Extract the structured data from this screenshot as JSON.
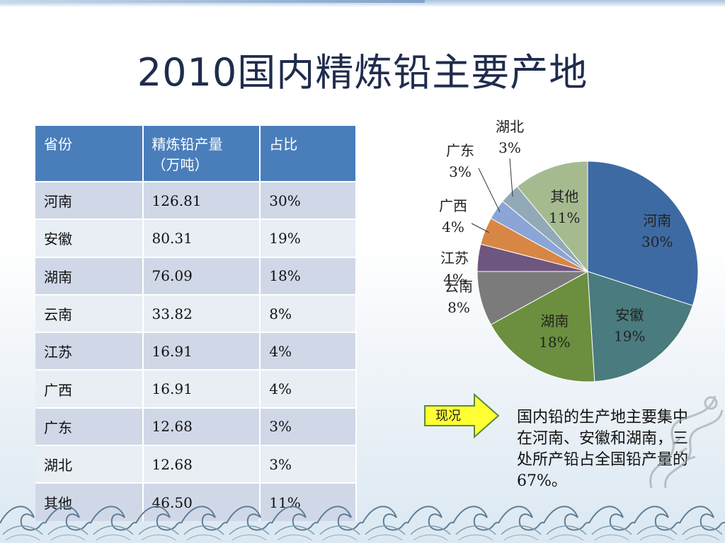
{
  "slide": {
    "title": "2010国内精炼铅主要产地"
  },
  "table": {
    "headers": [
      "省份",
      "精炼铅产量（万吨）",
      "占比"
    ],
    "rows": [
      [
        "河南",
        "126.81",
        "30%"
      ],
      [
        "安徽",
        "80.31",
        "19%"
      ],
      [
        "湖南",
        "76.09",
        "18%"
      ],
      [
        "云南",
        "33.82",
        "8%"
      ],
      [
        "江苏",
        "16.91",
        "4%"
      ],
      [
        "广西",
        "16.91",
        "4%"
      ],
      [
        "广东",
        "12.68",
        "3%"
      ],
      [
        "湖北",
        "12.68",
        "3%"
      ],
      [
        "其他",
        "46.50",
        "11%"
      ]
    ]
  },
  "chart_data": {
    "type": "pie",
    "categories": [
      "河南",
      "安徽",
      "湖南",
      "云南",
      "江苏",
      "广西",
      "广东",
      "湖北",
      "其他"
    ],
    "values": [
      30,
      19,
      18,
      8,
      4,
      4,
      3,
      3,
      11
    ],
    "labels": [
      "30%",
      "19%",
      "18%",
      "8%",
      "4%",
      "4%",
      "3%",
      "3%",
      "11%"
    ],
    "colors": [
      "#3e6aa3",
      "#4a7b7e",
      "#6b8f3e",
      "#7b7b7b",
      "#6e567e",
      "#d88644",
      "#8aa5d6",
      "#92a9b8",
      "#a5bb8f"
    ],
    "legend": "none"
  },
  "callout": {
    "label": "现况",
    "text": "国内铅的生产地主要集中在河南、安徽和湖南，三处所产铅占全国铅产量的67%。"
  },
  "colors": {
    "title": "#1f2c4d",
    "table_header": "#4a7ebb",
    "arrow_fill": "#ffff33",
    "arrow_stroke": "#5a8a3a"
  }
}
